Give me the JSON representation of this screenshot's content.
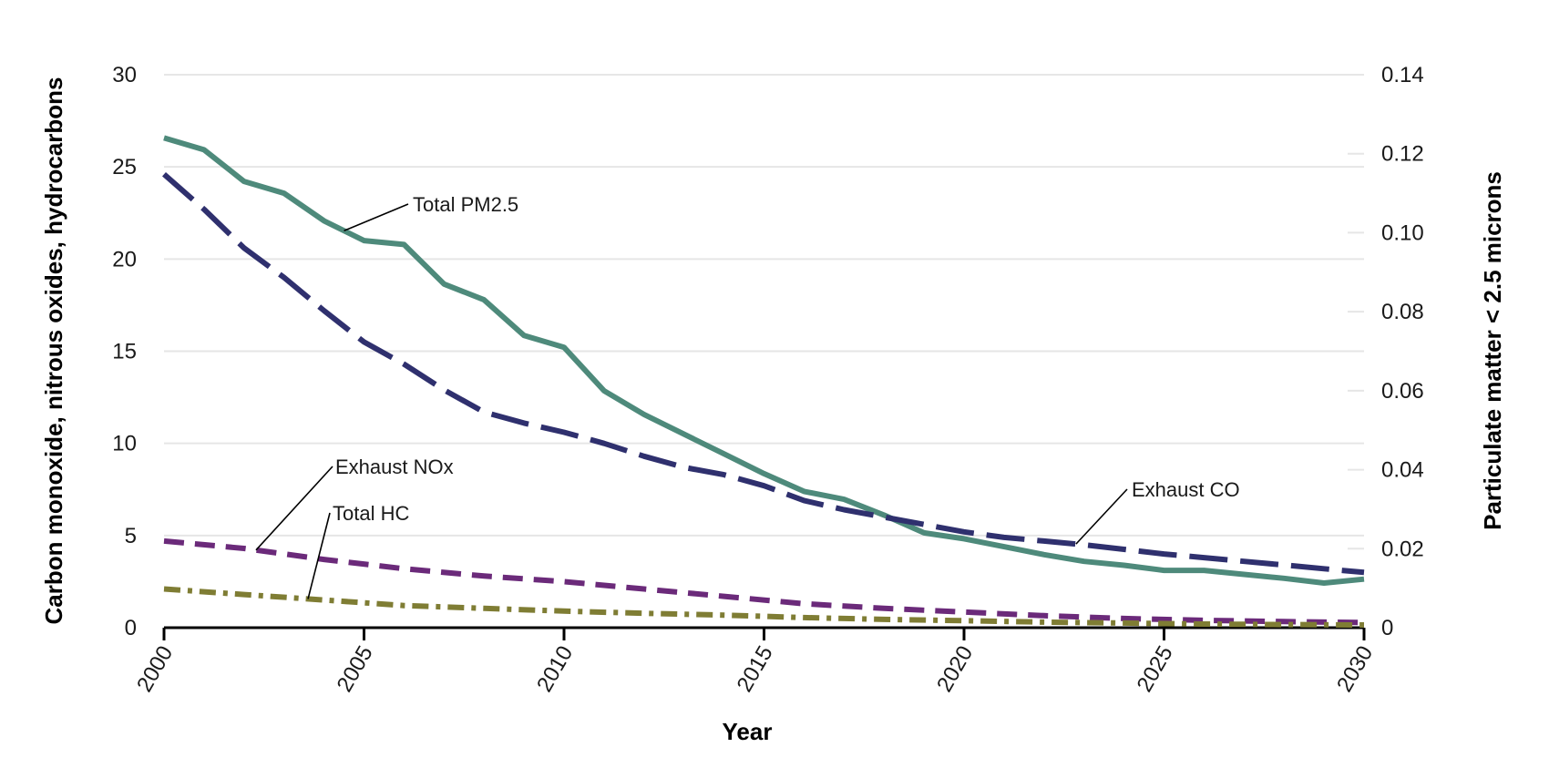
{
  "chart_data": {
    "type": "line",
    "xlabel": "Year",
    "ylabel_left": "Carbon monoxide, nitrous oxides, hydrocarbons",
    "ylabel_right": "Particulate matter < 2.5 microns",
    "xlim": [
      2000,
      2030
    ],
    "ylim_left": [
      0,
      30
    ],
    "ylim_right": [
      0,
      0.14
    ],
    "x_ticks": [
      "2000",
      "2005",
      "2010",
      "2015",
      "2020",
      "2025",
      "2030"
    ],
    "y_left_ticks": [
      "0",
      "5",
      "10",
      "15",
      "20",
      "25",
      "30"
    ],
    "y_right_ticks": [
      "0",
      "0.02",
      "0.04",
      "0.06",
      "0.08",
      "0.10",
      "0.12",
      "0.14"
    ],
    "grid": true,
    "legend": "none",
    "series": [
      {
        "name": "Total PM2.5",
        "axis": "right",
        "style": "solid",
        "color": "#4e8a7b",
        "x": [
          2000,
          2001,
          2002,
          2003,
          2004,
          2005,
          2006,
          2007,
          2008,
          2009,
          2010,
          2011,
          2012,
          2013,
          2014,
          2015,
          2016,
          2017,
          2018,
          2019,
          2020,
          2021,
          2022,
          2023,
          2024,
          2025,
          2026,
          2027,
          2028,
          2029,
          2030
        ],
        "values": [
          0.124,
          0.121,
          0.113,
          0.11,
          0.103,
          0.098,
          0.097,
          0.087,
          0.083,
          0.074,
          0.071,
          0.06,
          0.054,
          0.049,
          0.044,
          0.039,
          0.0345,
          0.0325,
          0.0285,
          0.024,
          0.0225,
          0.0205,
          0.0185,
          0.0168,
          0.0158,
          0.0145,
          0.0145,
          0.0135,
          0.0125,
          0.0113,
          0.0123
        ]
      },
      {
        "name": "Exhaust CO",
        "axis": "left",
        "style": "dash-long",
        "color": "#2f306e",
        "x": [
          2000,
          2001,
          2002,
          2003,
          2004,
          2005,
          2006,
          2007,
          2008,
          2009,
          2010,
          2011,
          2012,
          2013,
          2014,
          2015,
          2016,
          2017,
          2018,
          2019,
          2020,
          2021,
          2022,
          2023,
          2024,
          2025,
          2026,
          2027,
          2028,
          2029,
          2030
        ],
        "values": [
          24.6,
          22.7,
          20.6,
          19.0,
          17.2,
          15.5,
          14.3,
          12.9,
          11.7,
          11.1,
          10.6,
          10.0,
          9.3,
          8.7,
          8.3,
          7.7,
          6.9,
          6.4,
          6.0,
          5.6,
          5.2,
          4.9,
          4.7,
          4.5,
          4.25,
          4.0,
          3.8,
          3.6,
          3.4,
          3.2,
          3.0
        ]
      },
      {
        "name": "Exhaust NOx",
        "axis": "left",
        "style": "dash-short",
        "color": "#6b2a7a",
        "x": [
          2000,
          2002,
          2004,
          2006,
          2008,
          2010,
          2012,
          2014,
          2016,
          2018,
          2020,
          2022,
          2024,
          2026,
          2028,
          2030
        ],
        "values": [
          4.7,
          4.3,
          3.7,
          3.2,
          2.8,
          2.5,
          2.1,
          1.7,
          1.3,
          1.05,
          0.85,
          0.65,
          0.5,
          0.4,
          0.33,
          0.28
        ]
      },
      {
        "name": "Total HC",
        "axis": "left",
        "style": "dash-dot",
        "color": "#7f7d34",
        "x": [
          2000,
          2002,
          2004,
          2006,
          2008,
          2010,
          2012,
          2014,
          2016,
          2018,
          2020,
          2022,
          2024,
          2026,
          2028,
          2030
        ],
        "values": [
          2.1,
          1.8,
          1.5,
          1.2,
          1.05,
          0.9,
          0.78,
          0.68,
          0.55,
          0.45,
          0.38,
          0.3,
          0.25,
          0.2,
          0.17,
          0.15
        ]
      }
    ],
    "annotations": [
      {
        "text": "Total PM2.5",
        "series": "Total PM2.5"
      },
      {
        "text": "Exhaust NOx",
        "series": "Exhaust NOx"
      },
      {
        "text": "Total HC",
        "series": "Total HC"
      },
      {
        "text": "Exhaust CO",
        "series": "Exhaust CO"
      }
    ]
  }
}
